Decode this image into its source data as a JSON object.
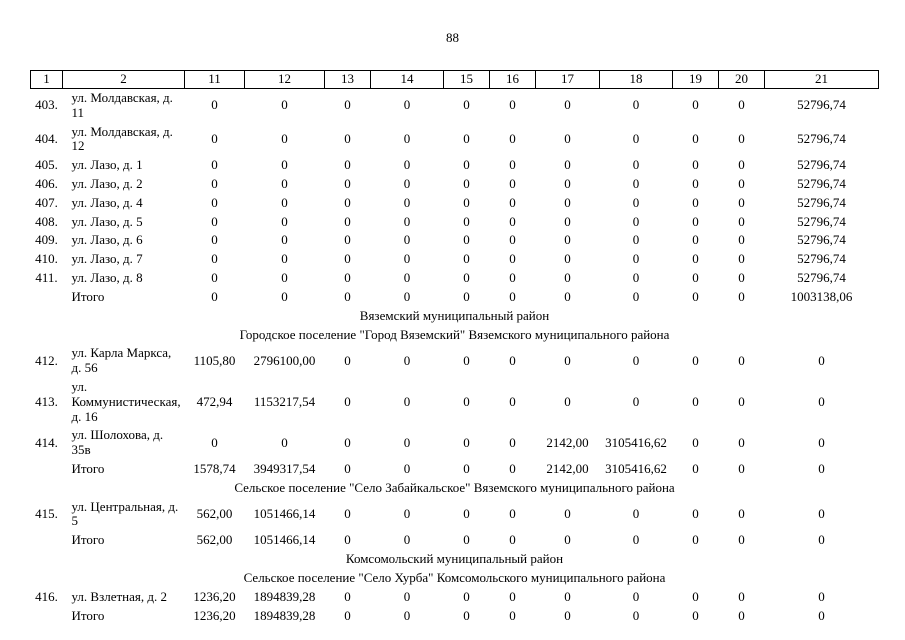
{
  "page": {
    "number": "88"
  },
  "table": {
    "headers": [
      "1",
      "2",
      "11",
      "12",
      "13",
      "14",
      "15",
      "16",
      "17",
      "18",
      "19",
      "20",
      "21"
    ],
    "rows": [
      {
        "type": "data",
        "num": "403.",
        "address": "ул. Молдавская, д. 11",
        "values": [
          "0",
          "0",
          "0",
          "0",
          "0",
          "0",
          "0",
          "0",
          "0",
          "0",
          "52796,74"
        ]
      },
      {
        "type": "data",
        "num": "404.",
        "address": "ул. Молдавская, д. 12",
        "values": [
          "0",
          "0",
          "0",
          "0",
          "0",
          "0",
          "0",
          "0",
          "0",
          "0",
          "52796,74"
        ]
      },
      {
        "type": "data",
        "num": "405.",
        "address": "ул. Лазо, д. 1",
        "values": [
          "0",
          "0",
          "0",
          "0",
          "0",
          "0",
          "0",
          "0",
          "0",
          "0",
          "52796,74"
        ]
      },
      {
        "type": "data",
        "num": "406.",
        "address": "ул. Лазо, д. 2",
        "values": [
          "0",
          "0",
          "0",
          "0",
          "0",
          "0",
          "0",
          "0",
          "0",
          "0",
          "52796,74"
        ]
      },
      {
        "type": "data",
        "num": "407.",
        "address": "ул. Лазо, д. 4",
        "values": [
          "0",
          "0",
          "0",
          "0",
          "0",
          "0",
          "0",
          "0",
          "0",
          "0",
          "52796,74"
        ]
      },
      {
        "type": "data",
        "num": "408.",
        "address": "ул. Лазо, д. 5",
        "values": [
          "0",
          "0",
          "0",
          "0",
          "0",
          "0",
          "0",
          "0",
          "0",
          "0",
          "52796,74"
        ]
      },
      {
        "type": "data",
        "num": "409.",
        "address": "ул. Лазо, д. 6",
        "values": [
          "0",
          "0",
          "0",
          "0",
          "0",
          "0",
          "0",
          "0",
          "0",
          "0",
          "52796,74"
        ]
      },
      {
        "type": "data",
        "num": "410.",
        "address": "ул. Лазо, д. 7",
        "values": [
          "0",
          "0",
          "0",
          "0",
          "0",
          "0",
          "0",
          "0",
          "0",
          "0",
          "52796,74"
        ]
      },
      {
        "type": "data",
        "num": "411.",
        "address": "ул. Лазо, д. 8",
        "values": [
          "0",
          "0",
          "0",
          "0",
          "0",
          "0",
          "0",
          "0",
          "0",
          "0",
          "52796,74"
        ]
      },
      {
        "type": "totals",
        "num": "",
        "address": "Итого",
        "values": [
          "0",
          "0",
          "0",
          "0",
          "0",
          "0",
          "0",
          "0",
          "0",
          "0",
          "1003138,06"
        ]
      },
      {
        "type": "section",
        "label": "Вяземский муниципальный район"
      },
      {
        "type": "section",
        "label": "Городское поселение \"Город Вяземский\" Вяземского муниципального района"
      },
      {
        "type": "data",
        "num": "412.",
        "address": "ул. Карла Маркса, д. 56",
        "values": [
          "1105,80",
          "2796100,00",
          "0",
          "0",
          "0",
          "0",
          "0",
          "0",
          "0",
          "0",
          "0"
        ]
      },
      {
        "type": "data",
        "num": "413.",
        "address": "ул. Коммунистическая, д. 16",
        "values": [
          "472,94",
          "1153217,54",
          "0",
          "0",
          "0",
          "0",
          "0",
          "0",
          "0",
          "0",
          "0"
        ]
      },
      {
        "type": "data",
        "num": "414.",
        "address": "ул. Шолохова, д. 35в",
        "values": [
          "0",
          "0",
          "0",
          "0",
          "0",
          "0",
          "2142,00",
          "3105416,62",
          "0",
          "0",
          "0"
        ]
      },
      {
        "type": "totals",
        "num": "",
        "address": "Итого",
        "values": [
          "1578,74",
          "3949317,54",
          "0",
          "0",
          "0",
          "0",
          "2142,00",
          "3105416,62",
          "0",
          "0",
          "0"
        ]
      },
      {
        "type": "section",
        "label": "Сельское поселение \"Село Забайкальское\" Вяземского муниципального района"
      },
      {
        "type": "data",
        "num": "415.",
        "address": "ул. Центральная, д. 5",
        "values": [
          "562,00",
          "1051466,14",
          "0",
          "0",
          "0",
          "0",
          "0",
          "0",
          "0",
          "0",
          "0"
        ]
      },
      {
        "type": "totals",
        "num": "",
        "address": "Итого",
        "values": [
          "562,00",
          "1051466,14",
          "0",
          "0",
          "0",
          "0",
          "0",
          "0",
          "0",
          "0",
          "0"
        ]
      },
      {
        "type": "section",
        "label": "Комсомольский муниципальный район"
      },
      {
        "type": "section",
        "label": "Сельское поселение \"Село Хурба\" Комсомольского муниципального района"
      },
      {
        "type": "data",
        "num": "416.",
        "address": "ул. Взлетная, д. 2",
        "values": [
          "1236,20",
          "1894839,28",
          "0",
          "0",
          "0",
          "0",
          "0",
          "0",
          "0",
          "0",
          "0"
        ]
      },
      {
        "type": "totals",
        "num": "",
        "address": "Итого",
        "values": [
          "1236,20",
          "1894839,28",
          "0",
          "0",
          "0",
          "0",
          "0",
          "0",
          "0",
          "0",
          "0"
        ]
      }
    ]
  }
}
